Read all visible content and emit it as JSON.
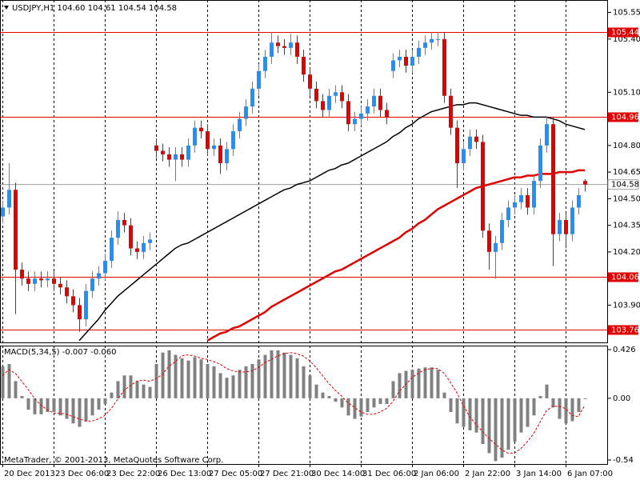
{
  "chart_data": {
    "type": "candlestick",
    "symbol": "USDJPY,H1",
    "last_bar_labels": [
      "104.60",
      "104.61",
      "104.54",
      "104.58"
    ],
    "categories": [
      "20 Dec 2013",
      null,
      null,
      null,
      null,
      null,
      null,
      null,
      "23 Dec 06:00",
      null,
      null,
      null,
      null,
      null,
      null,
      null,
      "23 Dec 22:00",
      null,
      null,
      null,
      null,
      null,
      null,
      null,
      "26 Dec 13:00",
      null,
      null,
      null,
      null,
      null,
      null,
      null,
      "27 Dec 05:00",
      null,
      null,
      null,
      null,
      null,
      null,
      null,
      "27 Dec 21:00",
      null,
      null,
      null,
      null,
      null,
      null,
      null,
      "30 Dec 14:00",
      null,
      null,
      null,
      null,
      null,
      null,
      null,
      "31 Dec 06:00",
      null,
      null,
      null,
      null,
      null,
      null,
      null,
      "2 Jan 06:00",
      null,
      null,
      null,
      null,
      null,
      null,
      null,
      "2 Jan 22:00",
      null,
      null,
      null,
      null,
      null,
      null,
      null,
      "3 Jan 14:00",
      null,
      null,
      null,
      null,
      null,
      null,
      null,
      "6 Jan 07:00",
      null,
      null,
      null
    ],
    "open": [
      104.4,
      104.45,
      104.55,
      104.1,
      104.05,
      104.02,
      104.05,
      104.04,
      104.05,
      104.02,
      104.0,
      103.95,
      103.9,
      103.82,
      103.98,
      104.05,
      104.08,
      104.15,
      104.28,
      104.38,
      104.35,
      104.22,
      104.2,
      104.25,
      104.8,
      104.77,
      104.75,
      104.72,
      104.75,
      104.72,
      104.8,
      104.9,
      104.88,
      104.78,
      104.8,
      104.7,
      104.78,
      104.88,
      104.95,
      105.02,
      105.12,
      105.22,
      105.3,
      105.38,
      105.36,
      105.35,
      105.38,
      105.3,
      105.2,
      105.12,
      105.05,
      105.0,
      105.08,
      105.1,
      105.05,
      104.92,
      104.95,
      104.98,
      105.02,
      105.08,
      105.0,
      105.22,
      105.28,
      105.3,
      105.25,
      105.3,
      105.35,
      105.38,
      105.4,
      105.4,
      105.08,
      104.9,
      104.7,
      104.78,
      104.85,
      104.82,
      104.32,
      104.2,
      104.25,
      104.38,
      104.45,
      104.48,
      104.52,
      104.45,
      104.6,
      104.8,
      104.92,
      104.3,
      104.38,
      104.3,
      104.45,
      104.6
    ],
    "high": [
      104.49,
      104.7,
      104.59,
      104.14,
      104.09,
      104.09,
      104.09,
      104.09,
      104.09,
      104.06,
      104.04,
      103.99,
      103.94,
      104.02,
      104.09,
      104.12,
      104.19,
      104.32,
      104.43,
      104.42,
      104.39,
      104.26,
      104.29,
      104.31,
      104.84,
      104.81,
      104.79,
      104.79,
      104.79,
      104.84,
      104.94,
      104.94,
      104.92,
      104.84,
      104.84,
      104.82,
      104.92,
      104.99,
      105.06,
      105.16,
      105.26,
      105.34,
      105.44,
      105.42,
      105.4,
      105.43,
      105.42,
      105.34,
      105.24,
      105.16,
      105.09,
      105.12,
      105.14,
      105.14,
      105.09,
      104.99,
      105.02,
      105.06,
      105.12,
      105.12,
      105.04,
      105.32,
      105.34,
      105.34,
      105.34,
      105.39,
      105.42,
      105.44,
      105.44,
      105.44,
      105.12,
      104.94,
      104.82,
      104.89,
      104.89,
      104.86,
      104.36,
      104.29,
      104.42,
      104.49,
      104.52,
      104.56,
      104.56,
      104.64,
      104.84,
      104.96,
      104.96,
      104.42,
      104.42,
      104.49,
      104.56,
      104.61
    ],
    "low": [
      104.36,
      104.41,
      103.85,
      104.01,
      103.98,
      103.98,
      104.0,
      104.0,
      103.98,
      103.96,
      103.91,
      103.86,
      103.75,
      103.78,
      103.94,
      104.01,
      104.04,
      104.11,
      104.24,
      104.31,
      104.18,
      104.16,
      104.16,
      104.21,
      104.73,
      104.71,
      104.68,
      104.6,
      104.68,
      104.68,
      104.76,
      104.84,
      104.74,
      104.74,
      104.64,
      104.66,
      104.74,
      104.84,
      104.91,
      104.98,
      105.08,
      105.18,
      105.26,
      105.32,
      105.31,
      105.31,
      105.26,
      105.16,
      105.08,
      105.01,
      104.96,
      104.96,
      105.04,
      105.01,
      104.88,
      104.88,
      104.91,
      104.94,
      104.98,
      104.96,
      104.92,
      105.18,
      105.24,
      105.21,
      105.21,
      105.26,
      105.31,
      105.34,
      105.36,
      105.04,
      104.86,
      104.56,
      104.66,
      104.74,
      104.78,
      104.28,
      104.1,
      104.05,
      104.21,
      104.34,
      104.41,
      104.44,
      104.41,
      104.41,
      104.56,
      104.76,
      104.12,
      104.26,
      104.22,
      104.26,
      104.41,
      104.54
    ],
    "close": [
      104.45,
      104.55,
      104.1,
      104.05,
      104.02,
      104.05,
      104.04,
      104.05,
      104.02,
      104.0,
      103.95,
      103.9,
      103.82,
      103.98,
      104.05,
      104.08,
      104.15,
      104.28,
      104.38,
      104.35,
      104.22,
      104.2,
      104.25,
      104.27,
      104.77,
      104.75,
      104.72,
      104.75,
      104.72,
      104.8,
      104.9,
      104.88,
      104.78,
      104.8,
      104.7,
      104.78,
      104.88,
      104.95,
      105.02,
      105.12,
      105.22,
      105.3,
      105.38,
      105.36,
      105.35,
      105.38,
      105.3,
      105.2,
      105.12,
      105.05,
      105.0,
      105.08,
      105.1,
      105.05,
      104.92,
      104.95,
      104.98,
      105.02,
      105.08,
      105.0,
      104.96,
      105.28,
      105.3,
      105.25,
      105.3,
      105.35,
      105.38,
      105.4,
      105.4,
      105.08,
      104.9,
      104.7,
      104.78,
      104.85,
      104.82,
      104.32,
      104.2,
      104.25,
      104.38,
      104.45,
      104.48,
      104.52,
      104.45,
      104.6,
      104.8,
      104.92,
      104.3,
      104.38,
      104.3,
      104.45,
      104.52,
      104.58
    ],
    "up_color": "#1e90ff",
    "down_color": "#e00000",
    "ylim": [
      103.69,
      105.62
    ],
    "yticks": [
      105.55,
      {
        "value": 105.4,
        "label": "105.40"
      },
      {
        "value": 105.1,
        "label": "105.10"
      },
      {
        "value": 104.8,
        "label": "104.80"
      },
      104.65,
      {
        "value": 104.5,
        "label": "104.50"
      },
      104.35,
      {
        "value": 104.2,
        "label": "104.20"
      },
      {
        "value": 103.9,
        "label": "103.90"
      }
    ],
    "series": [
      {
        "color": "#000000",
        "values": [
          null,
          null,
          null,
          null,
          null,
          null,
          null,
          null,
          null,
          null,
          null,
          null,
          103.7,
          103.74,
          103.78,
          103.82,
          103.87,
          103.91,
          103.95,
          103.98,
          104.01,
          104.04,
          104.07,
          104.1,
          104.13,
          104.16,
          104.19,
          104.22,
          104.24,
          104.25,
          104.27,
          104.29,
          104.31,
          104.33,
          104.35,
          104.37,
          104.39,
          104.41,
          104.43,
          104.45,
          104.47,
          104.49,
          104.51,
          104.53,
          104.55,
          104.56,
          104.58,
          104.59,
          104.6,
          104.62,
          104.64,
          104.66,
          104.67,
          104.69,
          104.7,
          104.72,
          104.74,
          104.76,
          104.78,
          104.8,
          104.82,
          104.85,
          104.87,
          104.9,
          104.92,
          104.95,
          104.97,
          104.99,
          105.0,
          105.01,
          105.02,
          105.03,
          105.03,
          105.04,
          105.04,
          105.03,
          105.02,
          105.01,
          105.0,
          104.99,
          104.98,
          104.97,
          104.97,
          104.96,
          104.96,
          104.96,
          104.95,
          104.94,
          104.92,
          104.91,
          104.9,
          104.89
        ]
      },
      {
        "color": "#e00000",
        "values": [
          null,
          null,
          null,
          null,
          null,
          null,
          null,
          null,
          null,
          null,
          null,
          null,
          null,
          null,
          null,
          null,
          null,
          null,
          null,
          null,
          null,
          null,
          null,
          null,
          null,
          null,
          null,
          null,
          null,
          null,
          null,
          null,
          103.7,
          103.72,
          103.74,
          103.75,
          103.77,
          103.78,
          103.8,
          103.82,
          103.84,
          103.86,
          103.89,
          103.91,
          103.93,
          103.95,
          103.97,
          103.99,
          104.01,
          104.03,
          104.05,
          104.07,
          104.09,
          104.1,
          104.12,
          104.14,
          104.16,
          104.18,
          104.2,
          104.22,
          104.24,
          104.26,
          104.28,
          104.31,
          104.33,
          104.36,
          104.38,
          104.41,
          104.44,
          104.46,
          104.48,
          104.5,
          104.52,
          104.54,
          104.56,
          104.57,
          104.58,
          104.59,
          104.6,
          104.61,
          104.62,
          104.62,
          104.63,
          104.63,
          104.64,
          104.64,
          104.64,
          104.65,
          104.65,
          104.65,
          104.66,
          104.66
        ]
      }
    ],
    "levels": [
      105.44,
      104.96,
      104.06,
      103.76
    ],
    "level_color": "#e00000",
    "current_price": 104.58,
    "macd": {
      "title": "MACD(5,34,5)",
      "last_labels": [
        "-0.007",
        "-0.060"
      ],
      "color": "#808080",
      "signal_color": "#e00000",
      "ylim": [
        -0.575,
        0.461
      ],
      "yticks": [
        0.426,
        {
          "value": 0,
          "label": "0.00"
        },
        -0.54
      ],
      "values": [
        0.28,
        0.3,
        0.15,
        0.02,
        -0.1,
        -0.14,
        -0.14,
        -0.12,
        -0.12,
        -0.15,
        -0.18,
        -0.22,
        -0.25,
        -0.2,
        -0.15,
        -0.1,
        -0.05,
        0.05,
        0.15,
        0.2,
        0.2,
        0.15,
        0.12,
        0.1,
        0.3,
        0.4,
        0.42,
        0.38,
        0.35,
        0.33,
        0.36,
        0.34,
        0.3,
        0.28,
        0.22,
        0.18,
        0.2,
        0.25,
        0.28,
        0.3,
        0.34,
        0.38,
        0.42,
        0.42,
        0.4,
        0.38,
        0.35,
        0.28,
        0.2,
        0.12,
        0.05,
        0.02,
        -0.03,
        -0.08,
        -0.15,
        -0.18,
        -0.16,
        -0.12,
        -0.08,
        -0.05,
        -0.05,
        0.15,
        0.22,
        0.24,
        0.25,
        0.26,
        0.27,
        0.27,
        0.25,
        0.05,
        -0.12,
        -0.22,
        -0.25,
        -0.28,
        -0.3,
        -0.4,
        -0.48,
        -0.55,
        -0.52,
        -0.45,
        -0.38,
        -0.3,
        -0.25,
        -0.15,
        0.02,
        0.12,
        -0.08,
        -0.18,
        -0.22,
        -0.2,
        -0.12,
        -0.007
      ],
      "signal": [
        0.2,
        0.25,
        0.22,
        0.15,
        0.08,
        0.0,
        -0.06,
        -0.1,
        -0.13,
        -0.13,
        -0.14,
        -0.16,
        -0.18,
        -0.2,
        -0.2,
        -0.18,
        -0.15,
        -0.09,
        -0.01,
        0.07,
        0.11,
        0.15,
        0.16,
        0.15,
        0.17,
        0.21,
        0.28,
        0.32,
        0.37,
        0.38,
        0.37,
        0.35,
        0.34,
        0.32,
        0.3,
        0.26,
        0.24,
        0.23,
        0.23,
        0.24,
        0.27,
        0.31,
        0.34,
        0.37,
        0.39,
        0.4,
        0.39,
        0.37,
        0.33,
        0.27,
        0.2,
        0.13,
        0.07,
        0.02,
        -0.04,
        -0.08,
        -0.12,
        -0.14,
        -0.14,
        -0.12,
        -0.09,
        -0.03,
        0.06,
        0.12,
        0.18,
        0.22,
        0.25,
        0.26,
        0.26,
        0.22,
        0.14,
        0.05,
        -0.06,
        -0.16,
        -0.23,
        -0.29,
        -0.35,
        -0.4,
        -0.45,
        -0.48,
        -0.48,
        -0.44,
        -0.38,
        -0.31,
        -0.21,
        -0.11,
        -0.07,
        -0.07,
        -0.09,
        -0.15,
        -0.16,
        -0.06
      ]
    },
    "copyright": "MetaTrader, © 2001-2013, MetaQuotes Software Corp."
  }
}
